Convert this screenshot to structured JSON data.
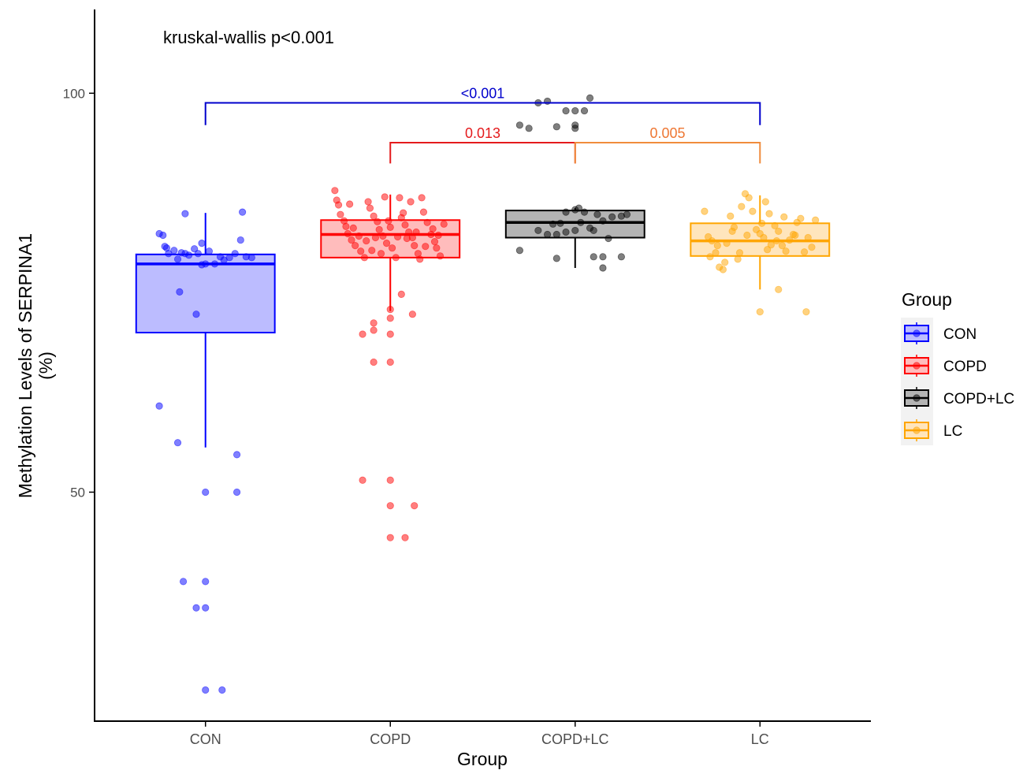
{
  "chart_data": {
    "type": "box",
    "annotation": "kruskal-wallis p<0.001",
    "xlabel": "Group",
    "ylabel_line1": "Methylation Levels of SERPINA1",
    "ylabel_line2": "(%)",
    "ylim": [
      21.3,
      110.5
    ],
    "yticks": [
      50,
      100
    ],
    "ytick_labels": [
      "50",
      "100"
    ],
    "categories": [
      "CON",
      "COPD",
      "COPD+LC",
      "LC"
    ],
    "groups": [
      {
        "name": "CON",
        "color": "#0000ff",
        "fill": "#bcbcff",
        "q1": 70.0,
        "median": 78.6,
        "q3": 79.8,
        "whisker_low": 55.6,
        "whisker_high": 85.0,
        "points": [
          [
            -0.25,
            82.4
          ],
          [
            -0.23,
            82.2
          ],
          [
            -0.22,
            80.8
          ],
          [
            -0.21,
            80.6
          ],
          [
            -0.2,
            79.9
          ],
          [
            -0.17,
            80.3
          ],
          [
            -0.15,
            79.2
          ],
          [
            -0.11,
            79.9
          ],
          [
            -0.06,
            80.5
          ],
          [
            -0.04,
            79.9
          ],
          [
            -0.02,
            78.5
          ],
          [
            0.02,
            80.2
          ],
          [
            0.05,
            78.6
          ],
          [
            0.08,
            79.5
          ],
          [
            0.1,
            79.1
          ],
          [
            0.13,
            79.4
          ],
          [
            0.16,
            79.9
          ],
          [
            0.19,
            81.6
          ],
          [
            0.22,
            79.5
          ],
          [
            -0.13,
            80.0
          ],
          [
            -0.09,
            79.7
          ],
          [
            0.25,
            79.4
          ],
          [
            -0.02,
            81.2
          ],
          [
            0.0,
            78.6
          ],
          [
            -0.11,
            84.9
          ],
          [
            0.2,
            85.1
          ],
          [
            -0.14,
            75.1
          ],
          [
            -0.05,
            72.3
          ],
          [
            -0.25,
            60.8
          ],
          [
            -0.15,
            56.2
          ],
          [
            0.17,
            54.7
          ],
          [
            0.17,
            50.0
          ],
          [
            0.0,
            50.0
          ],
          [
            -0.12,
            38.8
          ],
          [
            0.0,
            38.8
          ],
          [
            -0.05,
            35.5
          ],
          [
            0.0,
            35.5
          ],
          [
            0.0,
            25.2
          ],
          [
            0.09,
            25.2
          ]
        ]
      },
      {
        "name": "COPD",
        "color": "#ff0000",
        "fill": "#ffbcbc",
        "q1": 79.4,
        "median": 82.3,
        "q3": 84.1,
        "whisker_low": 72.7,
        "whisker_high": 87.3,
        "points": [
          [
            -0.3,
            87.8
          ],
          [
            -0.29,
            86.6
          ],
          [
            -0.28,
            86.0
          ],
          [
            -0.27,
            84.8
          ],
          [
            -0.25,
            84.0
          ],
          [
            -0.24,
            83.3
          ],
          [
            -0.23,
            82.4
          ],
          [
            -0.21,
            81.6
          ],
          [
            -0.19,
            80.9
          ],
          [
            -0.16,
            80.2
          ],
          [
            -0.14,
            79.4
          ],
          [
            -0.12,
            86.4
          ],
          [
            -0.11,
            85.6
          ],
          [
            -0.09,
            84.6
          ],
          [
            -0.07,
            83.9
          ],
          [
            -0.06,
            82.9
          ],
          [
            -0.04,
            82.1
          ],
          [
            -0.02,
            81.2
          ],
          [
            0.01,
            80.6
          ],
          [
            0.03,
            79.4
          ],
          [
            0.05,
            86.9
          ],
          [
            0.06,
            84.4
          ],
          [
            0.08,
            83.5
          ],
          [
            0.1,
            82.6
          ],
          [
            0.12,
            81.9
          ],
          [
            0.13,
            80.9
          ],
          [
            0.15,
            79.9
          ],
          [
            0.17,
            86.9
          ],
          [
            0.18,
            85.1
          ],
          [
            0.2,
            83.8
          ],
          [
            0.22,
            82.3
          ],
          [
            0.24,
            81.4
          ],
          [
            0.25,
            80.6
          ],
          [
            0.27,
            79.6
          ],
          [
            0.29,
            83.6
          ],
          [
            -0.2,
            83.1
          ],
          [
            -0.17,
            82.1
          ],
          [
            -0.13,
            81.5
          ],
          [
            -0.1,
            80.3
          ],
          [
            -0.05,
            79.9
          ],
          [
            0.0,
            83.2
          ],
          [
            0.04,
            82.0
          ],
          [
            0.09,
            81.8
          ],
          [
            0.14,
            82.6
          ],
          [
            0.19,
            80.8
          ],
          [
            0.23,
            83.0
          ],
          [
            0.26,
            82.2
          ],
          [
            -0.22,
            86.1
          ],
          [
            -0.01,
            84.0
          ],
          [
            0.07,
            85.0
          ],
          [
            -0.08,
            81.9
          ],
          [
            0.16,
            79.2
          ],
          [
            -0.03,
            87.0
          ],
          [
            0.11,
            86.4
          ],
          [
            0.06,
            74.8
          ],
          [
            0.0,
            72.9
          ],
          [
            0.12,
            72.3
          ],
          [
            -0.09,
            71.2
          ],
          [
            -0.15,
            69.8
          ],
          [
            -0.09,
            70.3
          ],
          [
            0.0,
            69.8
          ],
          [
            0.0,
            71.8
          ],
          [
            -0.09,
            66.3
          ],
          [
            0.0,
            66.3
          ],
          [
            -0.15,
            51.5
          ],
          [
            0.0,
            51.5
          ],
          [
            0.0,
            48.3
          ],
          [
            0.13,
            48.3
          ],
          [
            0.0,
            44.3
          ],
          [
            0.08,
            44.3
          ]
        ]
      },
      {
        "name": "COPD+LC",
        "color": "#000000",
        "fill": "#b4b4b4",
        "q1": 81.9,
        "median": 83.8,
        "q3": 85.3,
        "whisker_low": 78.1,
        "whisker_high": 85.6,
        "points": [
          [
            -0.3,
            80.3
          ],
          [
            -0.2,
            82.8
          ],
          [
            -0.15,
            82.3
          ],
          [
            -0.1,
            82.3
          ],
          [
            -0.05,
            82.6
          ],
          [
            0.0,
            82.8
          ],
          [
            0.1,
            82.8
          ],
          [
            0.18,
            81.8
          ],
          [
            -0.05,
            85.1
          ],
          [
            0.0,
            85.4
          ],
          [
            0.05,
            85.1
          ],
          [
            0.12,
            84.8
          ],
          [
            0.2,
            84.5
          ],
          [
            0.25,
            84.6
          ],
          [
            0.28,
            84.8
          ],
          [
            -0.08,
            83.7
          ],
          [
            0.03,
            83.8
          ],
          [
            -0.12,
            83.6
          ],
          [
            0.08,
            83.1
          ],
          [
            0.15,
            84.0
          ],
          [
            0.02,
            85.6
          ],
          [
            0.1,
            79.5
          ],
          [
            0.15,
            79.5
          ],
          [
            0.25,
            79.5
          ],
          [
            0.15,
            78.1
          ],
          [
            -0.1,
            79.3
          ],
          [
            -0.2,
            98.8
          ],
          [
            -0.15,
            99.0
          ],
          [
            0.08,
            99.4
          ],
          [
            0.05,
            97.8
          ],
          [
            -0.05,
            97.8
          ],
          [
            0.0,
            97.8
          ],
          [
            -0.3,
            96.0
          ],
          [
            -0.25,
            95.6
          ],
          [
            -0.1,
            95.8
          ],
          [
            0.0,
            96.0
          ],
          [
            0.0,
            95.6
          ]
        ]
      },
      {
        "name": "LC",
        "color": "#ffa500",
        "fill": "#ffe5bc",
        "q1": 79.6,
        "median": 81.5,
        "q3": 83.7,
        "whisker_low": 75.4,
        "whisker_high": 87.2,
        "points": [
          [
            -0.3,
            85.2
          ],
          [
            -0.28,
            82.0
          ],
          [
            -0.26,
            81.5
          ],
          [
            -0.24,
            80.0
          ],
          [
            -0.22,
            78.2
          ],
          [
            -0.2,
            77.9
          ],
          [
            -0.18,
            81.2
          ],
          [
            -0.16,
            84.6
          ],
          [
            -0.14,
            83.2
          ],
          [
            -0.12,
            79.2
          ],
          [
            -0.1,
            85.8
          ],
          [
            -0.08,
            87.4
          ],
          [
            -0.06,
            86.9
          ],
          [
            -0.04,
            85.2
          ],
          [
            -0.02,
            82.9
          ],
          [
            0.0,
            82.4
          ],
          [
            0.02,
            81.9
          ],
          [
            0.04,
            80.4
          ],
          [
            0.06,
            81.0
          ],
          [
            0.08,
            83.4
          ],
          [
            0.1,
            82.7
          ],
          [
            0.12,
            80.9
          ],
          [
            0.14,
            80.2
          ],
          [
            0.16,
            81.6
          ],
          [
            0.18,
            82.3
          ],
          [
            0.2,
            83.8
          ],
          [
            0.22,
            84.3
          ],
          [
            0.24,
            80.1
          ],
          [
            0.26,
            81.9
          ],
          [
            0.28,
            80.7
          ],
          [
            0.3,
            84.1
          ],
          [
            -0.27,
            79.5
          ],
          [
            -0.23,
            80.9
          ],
          [
            -0.19,
            78.8
          ],
          [
            -0.15,
            82.7
          ],
          [
            -0.11,
            80.0
          ],
          [
            -0.07,
            82.2
          ],
          [
            0.01,
            83.7
          ],
          [
            0.05,
            84.9
          ],
          [
            0.09,
            81.5
          ],
          [
            0.13,
            84.5
          ],
          [
            0.19,
            82.2
          ],
          [
            0.03,
            86.4
          ],
          [
            0.1,
            75.4
          ],
          [
            0.0,
            72.6
          ],
          [
            0.25,
            72.6
          ]
        ]
      }
    ],
    "comparisons": [
      {
        "from": "CON",
        "to": "LC",
        "label": "<0.001",
        "color": "#0000cc",
        "y": 98.8,
        "tip": 96.0
      },
      {
        "from": "COPD",
        "to": "COPD+LC",
        "label": "0.013",
        "color": "#e41a1c",
        "y": 93.8,
        "tip": 91.2
      },
      {
        "from": "COPD+LC",
        "to": "LC",
        "label": "0.005",
        "color": "#f08c3c",
        "y": 93.8,
        "tip": 91.2,
        "label_color": "#ee7733"
      }
    ],
    "legend": {
      "title": "Group",
      "position": "right",
      "items": [
        "CON",
        "COPD",
        "COPD+LC",
        "LC"
      ]
    }
  }
}
